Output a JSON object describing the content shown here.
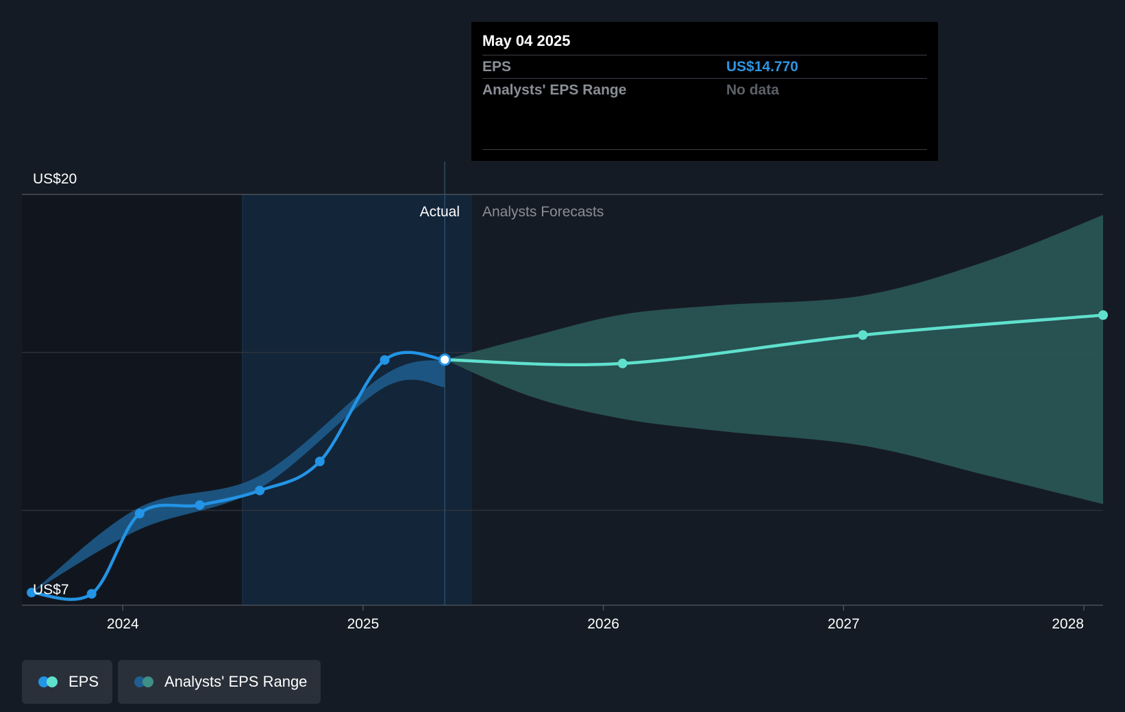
{
  "tooltip": {
    "date": "May 04 2025",
    "eps_label": "EPS",
    "eps_value": "US$14.770",
    "range_label": "Analysts' EPS Range",
    "range_value": "No data"
  },
  "legend": {
    "eps_label": "EPS",
    "range_label": "Analysts' EPS Range"
  },
  "colors": {
    "background": "#151b24",
    "actual_line": "#2394e6",
    "forecast_line": "#5fe0cd",
    "actual_band": "#1f5e8f",
    "forecast_band": "#2b5a5a",
    "actual_shade": "#132538"
  },
  "chart_data": {
    "type": "line",
    "title": "",
    "xlabel": "",
    "ylabel": "",
    "y_axis_labels": [
      "US$20",
      "US$7"
    ],
    "ylim": [
      7,
      20
    ],
    "xlim": [
      2023.58,
      2028.08
    ],
    "x_ticks": [
      2024,
      2025,
      2026,
      2027,
      2028
    ],
    "x_tick_labels": [
      "2024",
      "2025",
      "2026",
      "2027",
      "2028"
    ],
    "gridlines_y": [
      20,
      15,
      10
    ],
    "actual_label": "Actual",
    "forecast_label": "Analysts Forecasts",
    "highlight_start": 2024.34,
    "today_x": 2025.34,
    "series": [
      {
        "name": "EPS",
        "kind": "actual",
        "x": [
          2023.62,
          2023.87,
          2024.07,
          2024.32,
          2024.57,
          2024.82,
          2025.09,
          2025.34
        ],
        "values": [
          7.4,
          7.36,
          9.9,
          10.17,
          10.63,
          11.55,
          14.76,
          14.77
        ]
      },
      {
        "name": "EPS",
        "kind": "forecast",
        "x": [
          2025.34,
          2026.08,
          2027.08,
          2028.08
        ],
        "values": [
          14.77,
          14.65,
          15.55,
          16.18
        ]
      }
    ],
    "bands": [
      {
        "name": "Analysts' EPS Range",
        "kind": "actual",
        "x": [
          2023.62,
          2024.07,
          2024.57,
          2025.09,
          2025.34
        ],
        "upper": [
          7.4,
          10.1,
          11.1,
          14.3,
          14.77
        ],
        "lower": [
          7.4,
          9.4,
          10.7,
          13.9,
          13.9
        ]
      },
      {
        "name": "Analysts' EPS Range",
        "kind": "forecast",
        "x": [
          2025.34,
          2025.7,
          2026.08,
          2026.5,
          2027.08,
          2027.6,
          2028.08
        ],
        "upper": [
          14.77,
          15.5,
          16.2,
          16.5,
          16.8,
          17.9,
          19.35
        ],
        "lower": [
          14.77,
          13.6,
          12.9,
          12.5,
          12.05,
          11.1,
          10.2
        ]
      }
    ]
  }
}
